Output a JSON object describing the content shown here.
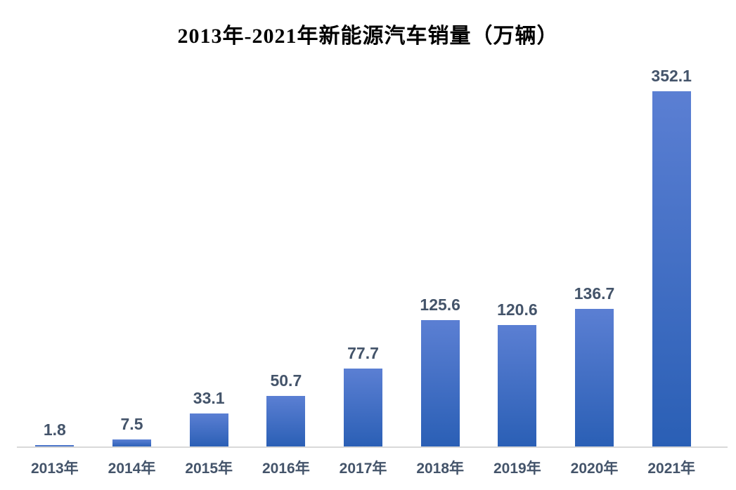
{
  "page": {
    "background": "#ffffff"
  },
  "chart_data": {
    "type": "bar",
    "title": "2013年-2021年新能源汽车销量（万辆）",
    "categories": [
      "2013年",
      "2014年",
      "2015年",
      "2016年",
      "2017年",
      "2018年",
      "2019年",
      "2020年",
      "2021年"
    ],
    "values": [
      1.8,
      7.5,
      33.1,
      50.7,
      77.7,
      125.6,
      120.6,
      136.7,
      352.1
    ],
    "xlabel": "",
    "ylabel": "",
    "ylim": [
      0,
      360
    ],
    "grid": false,
    "legend": false,
    "data_labels": true,
    "colors": {
      "bar_gradient_top": "#5b7fd3",
      "bar_gradient_bottom": "#2a5fb5",
      "axis_line": "#d9d9d9",
      "data_label": "#44546a",
      "axis_label": "#44546a",
      "title": "#000000"
    }
  }
}
